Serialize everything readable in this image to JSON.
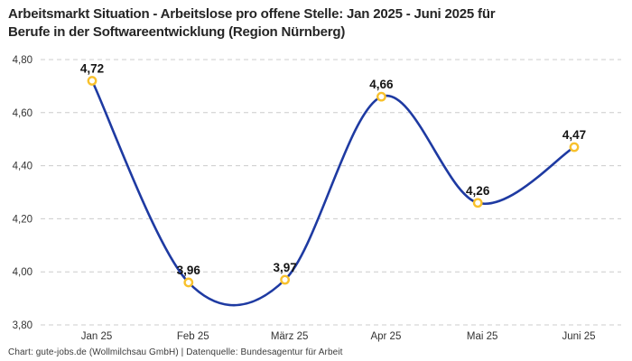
{
  "header": {
    "title_line1": "Arbeitsmarkt Situation - Arbeitslose pro offene Stelle: Jan 2025 - Juni 2025 für",
    "title_line2": "Berufe in der Softwareentwicklung (Region Nürnberg)"
  },
  "footer": {
    "text": "Chart: gute-jobs.de (Wollmilchsau GmbH) | Datenquelle: Bundesagentur für Arbeit"
  },
  "chart_data": {
    "type": "line",
    "title": "Arbeitsmarkt Situation - Arbeitslose pro offene Stelle: Jan 2025 - Juni 2025 für Berufe in der Softwareentwicklung (Region Nürnberg)",
    "categories": [
      "Jan 25",
      "Feb 25",
      "März 25",
      "Apr 25",
      "Mai 25",
      "Juni 25"
    ],
    "values": [
      4.72,
      3.96,
      3.97,
      4.66,
      4.26,
      4.47
    ],
    "value_labels": [
      "4,72",
      "3,96",
      "3,97",
      "4,66",
      "4,26",
      "4,47"
    ],
    "xlabel": "",
    "ylabel": "",
    "ylim": [
      3.8,
      4.8
    ],
    "y_ticks": [
      {
        "value": 4.8,
        "label": "4,80"
      },
      {
        "value": 4.6,
        "label": "4,60"
      },
      {
        "value": 4.4,
        "label": "4,40"
      },
      {
        "value": 4.2,
        "label": "4,20"
      },
      {
        "value": 4.0,
        "label": "4,00"
      },
      {
        "value": 3.8,
        "label": "3,80"
      }
    ],
    "grid": "horizontal-dashed",
    "legend": "none",
    "line_style": "smooth-spline",
    "marker_style": "open-circle",
    "colors": {
      "line": "#1e3aa2",
      "marker_ring": "#f8c12c",
      "marker_fill": "#ffffff",
      "gridline": "#cccccc",
      "data_label": "#141414",
      "tick_label": "#333333",
      "title": "#252525",
      "footer": "#3a3a3a"
    }
  }
}
